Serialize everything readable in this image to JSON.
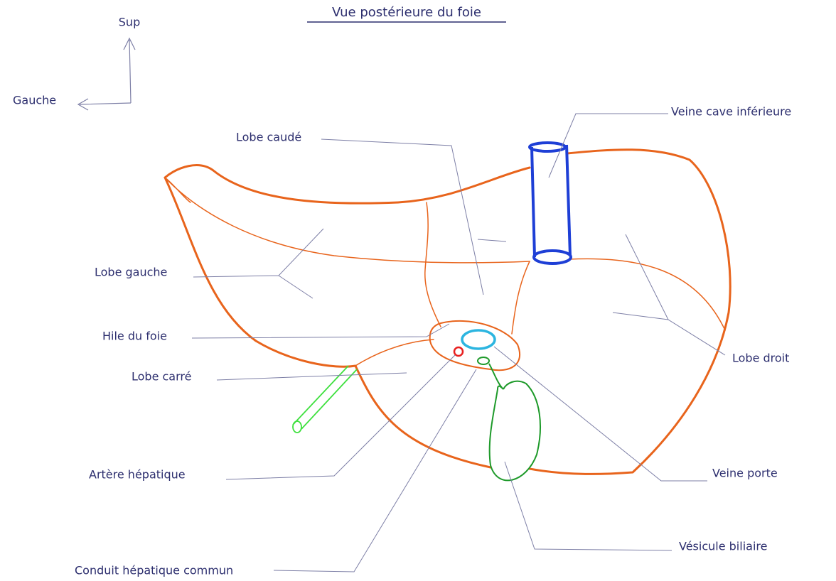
{
  "title": "Vue postérieure du foie",
  "orientation": {
    "up": "Sup",
    "left": "Gauche"
  },
  "labels": [
    "Veine cave inférieure",
    "Lobe caudé",
    "Lobe gauche",
    "Lobe droit",
    "Hile du foie",
    "Lobe carré",
    "Artère hépatique",
    "Veine porte",
    "Vésicule biliaire",
    "Conduit hépatique commun"
  ]
}
